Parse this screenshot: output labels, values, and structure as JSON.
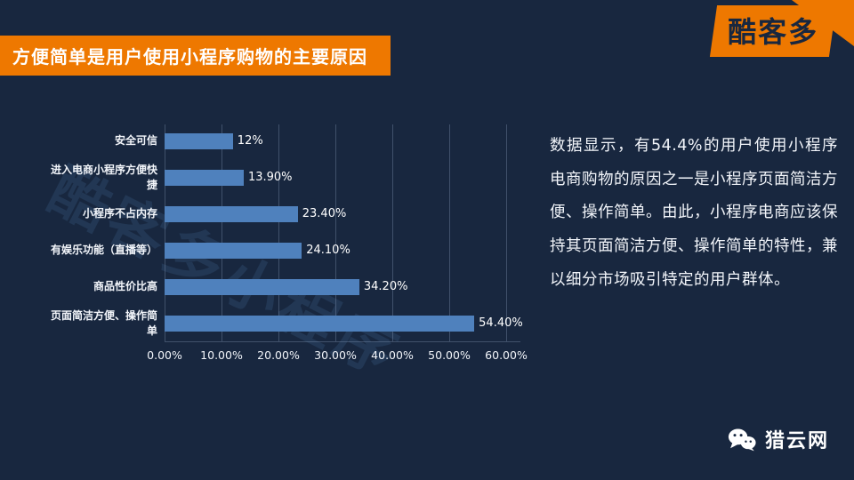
{
  "page": {
    "bg_color": "#18273f",
    "accent_orange": "#ee7800",
    "bar_color": "#4f81bd"
  },
  "header": {
    "title": "方便简单是用户使用小程序购物的主要原因",
    "logo_text": "酷客多"
  },
  "chart_data": {
    "type": "bar",
    "orientation": "horizontal",
    "title": "",
    "categories": [
      "安全可信",
      "进入电商小程序方便快捷",
      "小程序不占内存",
      "有娱乐功能（直播等）",
      "商品性价比高",
      "页面简洁方便、操作简单"
    ],
    "values": [
      12,
      13.9,
      23.4,
      24.1,
      34.2,
      54.4
    ],
    "value_labels": [
      "12%",
      "13.90%",
      "23.40%",
      "24.10%",
      "34.20%",
      "54.40%"
    ],
    "x_ticks": [
      "0.00%",
      "10.00%",
      "20.00%",
      "30.00%",
      "40.00%",
      "50.00%",
      "60.00%"
    ],
    "xlim": [
      0,
      60
    ],
    "grid": true,
    "legend": "none",
    "watermark": "酷客多小程序"
  },
  "commentary": {
    "text": "数据显示，有54.4%的用户使用小程序电商购物的原因之一是小程序页面简洁方便、操作简单。由此，小程序电商应该保持其页面简洁方便、操作简单的特性，兼以细分市场吸引特定的用户群体。"
  },
  "footer": {
    "brand": "猎云网"
  }
}
